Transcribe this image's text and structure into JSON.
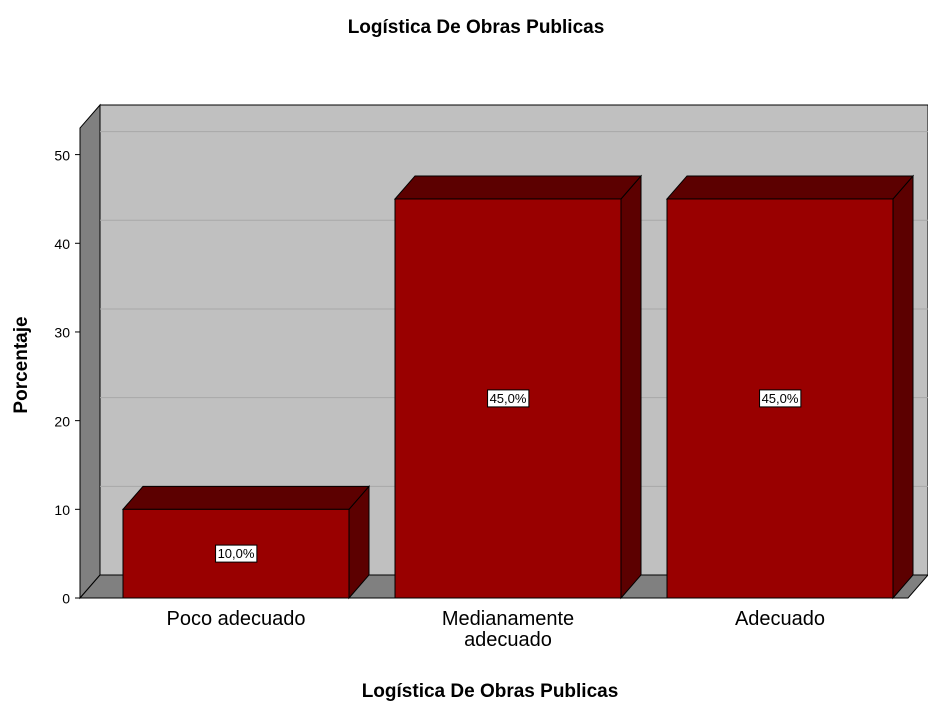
{
  "chart_data": {
    "type": "bar3d",
    "title": "Logística De Obras Publicas",
    "categories": [
      "Poco adecuado",
      "Medianamente adecuado",
      "Adecuado"
    ],
    "values": [
      10,
      45,
      45
    ],
    "value_labels": [
      "10,0%",
      "45,0%",
      "45,0%"
    ],
    "color": "#990000",
    "ylabel": "Porcentaje",
    "xlabel": "Logística De Obras Publicas",
    "ylim": [
      0,
      53
    ],
    "yticks": [
      0,
      10,
      20,
      30,
      40,
      50
    ],
    "grid": true
  }
}
